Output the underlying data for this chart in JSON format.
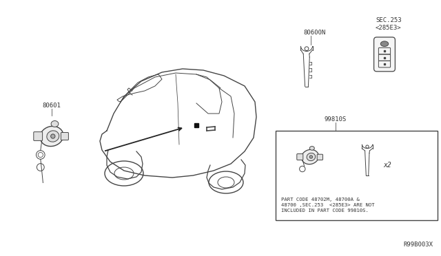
{
  "bg_color": "#ffffff",
  "part_label_80601": "80601",
  "part_label_80600N": "80600N",
  "part_label_SEC253": "SEC.253\n<285E3>",
  "part_label_99810S": "99810S",
  "note_text": "PART CODE 48702M, 48700A &\n48700 ,SEC.253  <285E3> ARE NOT\nINCLUDED IN PART CODE 99810S.",
  "diagram_id": "R99B003X",
  "line_color": "#444444",
  "text_color": "#333333",
  "font_size_label": 6.5,
  "font_size_note": 5.2,
  "font_size_id": 6.5
}
